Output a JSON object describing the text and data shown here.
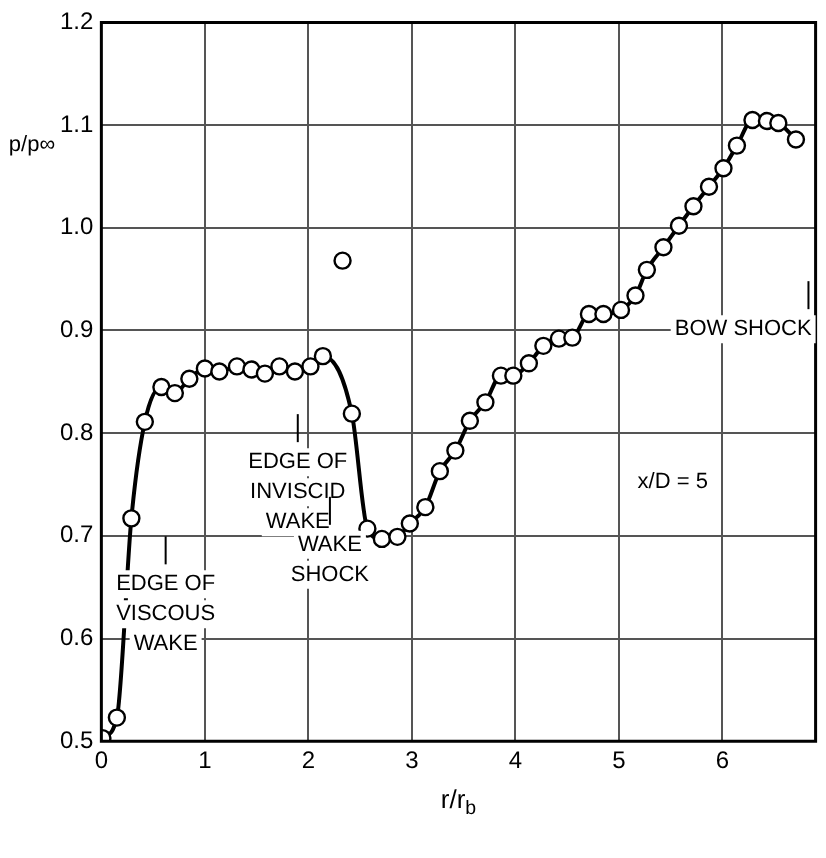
{
  "chart_data": {
    "type": "line",
    "xlabel": "r/r$_{b}$",
    "ylabel": "p/p∞",
    "xlim": [
      0,
      6.9
    ],
    "xticks": [
      0,
      1,
      2,
      3,
      4,
      5,
      6
    ],
    "ylim": [
      0.5,
      1.2
    ],
    "yticks": [
      0.5,
      0.6,
      0.7,
      0.8,
      0.9,
      {
        "value": 1,
        "label": "1.0"
      },
      1.1,
      1.2
    ],
    "grid": true,
    "marker": "circle",
    "line_style": "solid",
    "series": [
      {
        "color": "#000000",
        "x": [
          0.01,
          0.15,
          0.29,
          0.42,
          0.58,
          0.71,
          0.85,
          1.0,
          1.14,
          1.31,
          1.45,
          1.58,
          1.72,
          1.87,
          2.02,
          2.14,
          2.42,
          2.57,
          2.71,
          2.86,
          2.98,
          3.13,
          3.27,
          3.42,
          3.56,
          3.71,
          3.86,
          3.98,
          4.13,
          4.27,
          4.42,
          4.55,
          4.71,
          4.85,
          5.02,
          5.16,
          5.27,
          5.43,
          5.58,
          5.72,
          5.87,
          6.01,
          6.14,
          6.29,
          6.43,
          6.54,
          6.71
        ],
        "values": [
          0.503,
          0.523,
          0.717,
          0.811,
          0.845,
          0.839,
          0.853,
          0.863,
          0.86,
          0.865,
          0.862,
          0.858,
          0.865,
          0.86,
          0.865,
          0.875,
          0.819,
          0.707,
          0.697,
          0.699,
          0.712,
          0.728,
          0.763,
          0.783,
          0.812,
          0.83,
          0.856,
          0.856,
          0.868,
          0.885,
          0.892,
          0.893,
          0.916,
          0.916,
          0.92,
          0.934,
          0.959,
          0.981,
          1.002,
          1.021,
          1.04,
          1.058,
          1.08,
          1.105,
          1.104,
          1.102,
          1.086
        ]
      },
      {
        "type": "scatter",
        "color": "#000000",
        "x": [
          2.33
        ],
        "values": [
          0.968
        ]
      }
    ],
    "annotations": [
      "EDGE OF\nVISCOUS\nWAKE",
      "EDGE OF\nINVISCID\nWAKE",
      "WAKE\nSHOCK",
      "BOW SHOCK",
      "x/D = 5"
    ]
  }
}
